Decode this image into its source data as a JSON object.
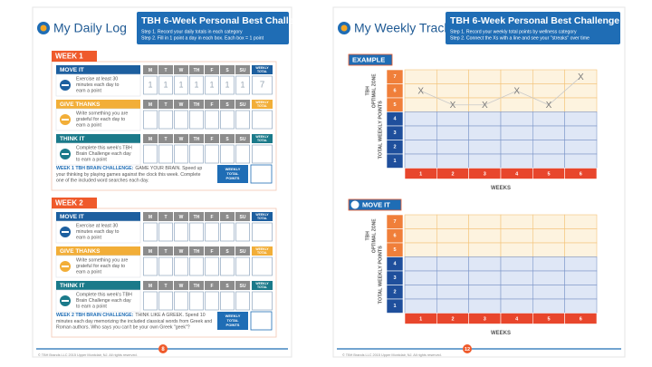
{
  "left_page": {
    "title": "My Daily Log",
    "challenge": {
      "title": "TBH 6-Week Personal Best Challenge",
      "steps": [
        "Step 1. Record your daily totals in each category",
        "Step 2. Fill in 1 point a day in each box. Each box = 1 point"
      ]
    },
    "day_labels": [
      "M",
      "T",
      "W",
      "TH",
      "F",
      "S",
      "SU"
    ],
    "weekly_total_label": [
      "WEEKLY",
      "TOTAL"
    ],
    "total_points_label": [
      "WEEKLY",
      "TOTAL",
      "POINTS"
    ],
    "weeks": [
      {
        "label": "WEEK 1",
        "sections": [
          {
            "name": "MOVE IT",
            "color": "#1d5f9f",
            "description": [
              "Exercise at least 30",
              "minutes each day to",
              "earn a point"
            ],
            "entries": [
              "1",
              "1",
              "1",
              "1",
              "1",
              "1",
              "1"
            ],
            "total": "7"
          },
          {
            "name": "GIVE THANKS",
            "color": "#f2ae38",
            "description": [
              "Write something you are",
              "grateful for each day to",
              "earn a point"
            ]
          },
          {
            "name": "THINK IT",
            "color": "#1b7a8a",
            "description": [
              "Complete this week's TBH",
              "Brain Challenge each day",
              "to earn a point"
            ]
          }
        ],
        "brain_challenge": {
          "heading": "WEEK 1 TBH BRAIN CHALLENGE:",
          "lines": [
            "GAME YOUR BRAIN. Speed up",
            "your thinking by playing games against the clock this week. Complete",
            "one of the included word searches each day."
          ]
        }
      },
      {
        "label": "WEEK 2",
        "sections": [
          {
            "name": "MOVE IT",
            "color": "#1d5f9f",
            "description": [
              "Exercise at least 30",
              "minutes each day to",
              "earn a point"
            ]
          },
          {
            "name": "GIVE THANKS",
            "color": "#f2ae38",
            "description": [
              "Write something you are",
              "grateful for each day to",
              "earn a point"
            ]
          },
          {
            "name": "THINK IT",
            "color": "#1b7a8a",
            "description": [
              "Complete this week's TBH",
              "Brain Challenge each day",
              "to earn a point"
            ]
          }
        ],
        "brain_challenge": {
          "heading": "WEEK 2 TBH BRAIN CHALLENGE:",
          "lines": [
            "THINK LIKE A GREEK. Spend 10",
            "minutes each day memorizing the included classical words from Greek and",
            "Roman authors. Who says you can't be your own Greek \"geek\"?"
          ]
        }
      }
    ],
    "page_number": "8",
    "footer": "© TBH Brands LLC 2015 Upper Montclair, NJ. All rights reserved."
  },
  "right_page": {
    "title": "My Weekly Tracker",
    "challenge": {
      "title": "TBH 6-Week Personal Best Challenge",
      "steps": [
        "Step 1. Record your weekly total points by wellness category",
        "Step 2. Connect the Xs with a line and see your \"streaks\" over time"
      ]
    },
    "zone_levels": [
      "1",
      "2",
      "3",
      "4",
      "5",
      "6",
      "7"
    ],
    "week_numbers": [
      "1",
      "2",
      "3",
      "4",
      "5",
      "6"
    ],
    "optimal_zone_label": [
      "TBH",
      "OPTIMAL ZONE"
    ],
    "points_axis_label": "TOTAL WEEKLY POINTS",
    "weeks_axis_label": "WEEKS",
    "marker": "X",
    "trackers": [
      {
        "label": "EXAMPLE",
        "points": [
          6,
          5,
          5,
          6,
          5,
          7
        ]
      },
      {
        "label": "MOVE IT"
      }
    ],
    "page_number": "12",
    "footer": "© TBH Brands LLC 2015 Upper Montclair, NJ. All rights reserved."
  }
}
